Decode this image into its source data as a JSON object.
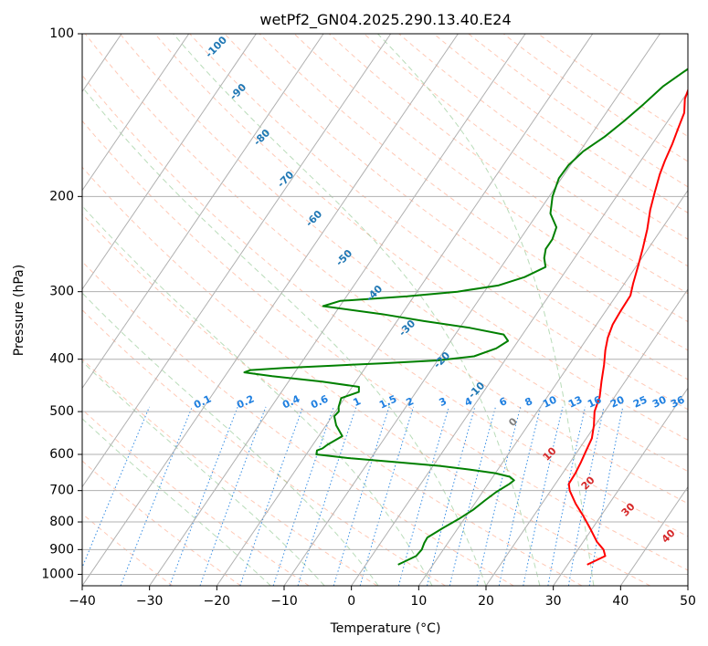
{
  "chart_data": {
    "type": "line",
    "title": "wetPf2_GN04.2025.290.13.40.E24",
    "xlabel": "Temperature (°C)",
    "ylabel": "Pressure (hPa)",
    "xlim": [
      -40,
      50
    ],
    "ylim": [
      1050,
      100
    ],
    "y_scale": "log",
    "grid": true,
    "x_ticks": [
      "−40",
      "−30",
      "−20",
      "−10",
      "0",
      "10",
      "20",
      "30",
      "40",
      "50"
    ],
    "y_ticks": [
      "100",
      "200",
      "300",
      "400",
      "500",
      "600",
      "700",
      "800",
      "900",
      "1000"
    ],
    "series": [
      {
        "color": "#ff0000",
        "x": [
          32.9,
          34.7,
          33.8,
          32.0,
          29.8,
          27.4,
          25.0,
          22.8,
          22.0,
          21.9,
          21.6,
          21.2,
          20.8,
          19.8,
          18.5,
          17.8,
          16.5,
          15.2,
          13.9,
          13.0,
          12.4,
          12.2,
          12.1,
          11.3,
          10.3,
          9.2,
          7.9,
          6.4,
          5.3,
          4.2,
          3.6,
          3.0,
          2.3,
          1.6,
          0.3,
          -0.3,
          -0.4,
          0.2,
          1.2,
          2.6,
          4.1,
          6.2
        ],
        "y": [
          960,
          925,
          900,
          870,
          825,
          780,
          740,
          700,
          680,
          650,
          620,
          590,
          560,
          530,
          500,
          470,
          440,
          410,
          385,
          365,
          345,
          325,
          305,
          290,
          270,
          250,
          230,
          212,
          197,
          182,
          172,
          160,
          150,
          140,
          132,
          125,
          118,
          112,
          108,
          105,
          102,
          99
        ]
      },
      {
        "color": "#008000",
        "x": [
          4.8,
          6.6,
          6.8,
          6.5,
          6.4,
          7.8,
          9.2,
          10.4,
          11.2,
          12.0,
          13.2,
          13.5,
          12.5,
          10.0,
          5.8,
          1.0,
          -6.0,
          -13.0,
          -18.5,
          -18.8,
          -18.2,
          -17.8,
          -16.5,
          -18.5,
          -19.7,
          -19.5,
          -20.0,
          -20.5,
          -18.5,
          -19.0,
          -25.0,
          -33.0,
          -37.5,
          -36.8,
          -32.0,
          -25.0,
          -18.0,
          -10.0,
          -5.0,
          -2.5,
          -1.5,
          -2.8,
          -8.5,
          -16.0,
          -23.0,
          -32.5,
          -30.5,
          -21.0,
          -14.0,
          -8.5,
          -5.5,
          -3.4,
          -4.5,
          -5.2,
          -5.2,
          -5.8,
          -8.1,
          -9.5,
          -10.4,
          -10.3,
          -9.5,
          -7.8,
          -6.5,
          -5.3,
          -4.2,
          -2.7,
          -1.3,
          0.4,
          1.8
        ],
        "y": [
          960,
          925,
          900,
          875,
          855,
          820,
          790,
          760,
          730,
          705,
          680,
          670,
          660,
          650,
          640,
          630,
          620,
          610,
          600,
          590,
          585,
          575,
          555,
          530,
          510,
          500,
          490,
          472,
          460,
          450,
          440,
          430,
          423,
          419,
          415,
          411,
          407,
          402,
          395,
          382,
          370,
          360,
          350,
          340,
          330,
          319,
          312,
          306,
          300,
          292,
          282,
          270,
          260,
          250,
          240,
          228,
          215,
          200,
          185,
          175,
          165,
          155,
          145,
          135,
          125,
          118,
          112,
          106,
          100
        ]
      }
    ],
    "dry_adiabat_labels": [
      "-100",
      "-90",
      "-80",
      "-70",
      "-60",
      "-50",
      "-40",
      "-30",
      "-20",
      "-10",
      "0",
      "10",
      "20",
      "30",
      "40"
    ],
    "mixing_ratio_labels": [
      "0.1",
      "0.2",
      "0.4",
      "0.6",
      "1",
      "1.5",
      "2",
      "3",
      "4",
      "6",
      "8",
      "10",
      "13",
      "16",
      "20",
      "25",
      "30",
      "36"
    ]
  }
}
